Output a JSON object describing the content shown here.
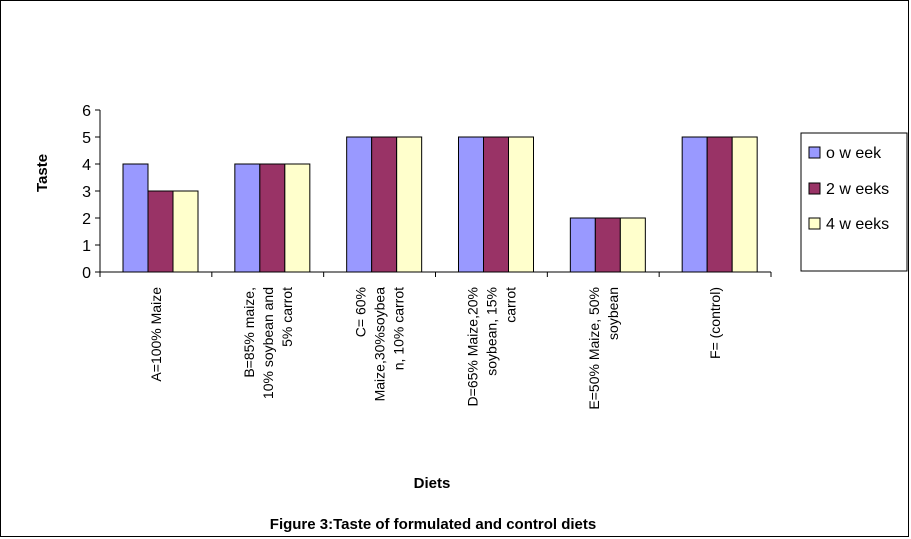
{
  "chart_data": {
    "type": "bar",
    "title": "Figure 3:Taste of formulated and control diets",
    "xlabel": "Diets",
    "ylabel": "Taste",
    "ylim": [
      0,
      6
    ],
    "yticks": [
      "0",
      "1",
      "2",
      "3",
      "4",
      "5",
      "6"
    ],
    "categories": [
      "A=100% Maize",
      "B=85% maize, 10% soybean and 5% carrot",
      "C= 60% Maize,30%soybean, 10% carrot",
      "D=65% Maize,20% soybean, 15% carrot",
      "E=50% Maize, 50% soybean",
      "F= (control)"
    ],
    "category_lines": [
      [
        "A=100% Maize"
      ],
      [
        "B=85% maize,",
        "10% soybean and",
        "5% carrot"
      ],
      [
        "C= 60%",
        "Maize,30%soybea",
        "n, 10% carrot"
      ],
      [
        "D=65% Maize,20%",
        "soybean, 15%",
        "carrot"
      ],
      [
        "E=50% Maize, 50%",
        "soybean"
      ],
      [
        "F= (control)"
      ]
    ],
    "series": [
      {
        "name": "o w eek",
        "color": "#9999ff",
        "values": [
          4,
          4,
          5,
          5,
          2,
          5
        ]
      },
      {
        "name": "2 w eeks",
        "color": "#993366",
        "values": [
          3,
          4,
          5,
          5,
          2,
          5
        ]
      },
      {
        "name": "4 w eeks",
        "color": "#ffffcc",
        "values": [
          3,
          4,
          5,
          5,
          2,
          5
        ]
      }
    ],
    "grid": false,
    "legend_position": "right"
  }
}
